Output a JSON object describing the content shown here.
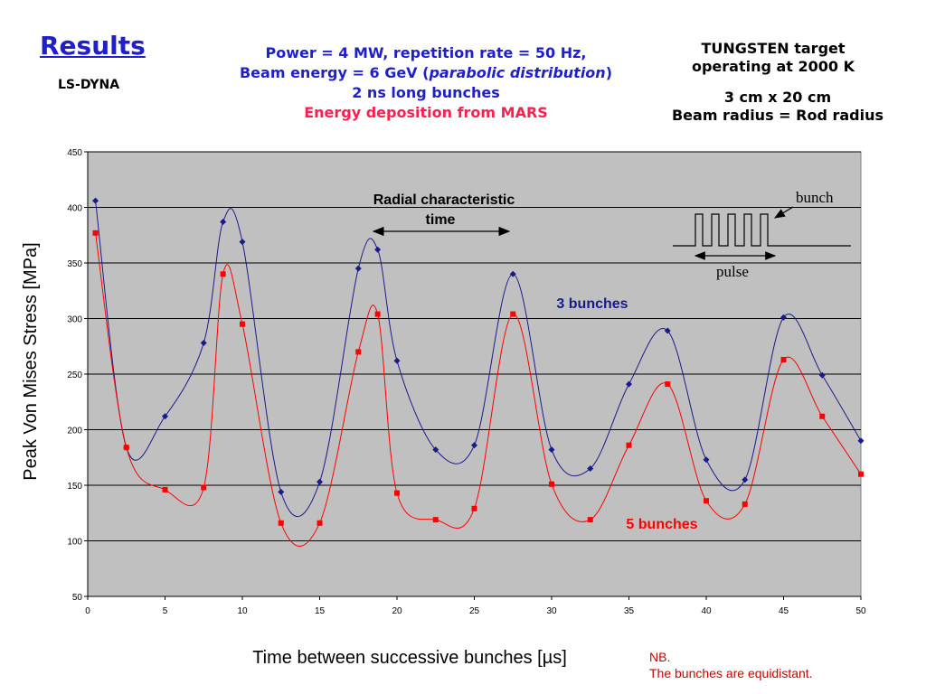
{
  "header": {
    "title": "Results",
    "subtitle": "LS-DYNA",
    "params_line1": "Power = 4 MW, repetition rate = 50 Hz,",
    "params_line2a": "Beam energy = 6 GeV (",
    "params_line2b": "parabolic distribution",
    "params_line2c": ")",
    "params_line3": "2 ns long bunches",
    "params_line4": "Energy deposition from MARS",
    "target_line1": "TUNGSTEN target",
    "target_line2": "operating at 2000 K",
    "target_line3": "3 cm x 20 cm",
    "target_line4": "Beam radius = Rod radius"
  },
  "note": {
    "line1": "NB.",
    "line2": "The bunches are equidistant."
  },
  "annotations": {
    "radial_line1": "Radial characteristic",
    "radial_line2": "time",
    "bunch": "bunch",
    "pulse": "pulse",
    "series3_label": "3 bunches",
    "series5_label": "5 bunches"
  },
  "colors": {
    "series3": "#1a1a8c",
    "series5": "#ff0000",
    "plot_bg": "#c0c0c0"
  },
  "chart_data": {
    "type": "line",
    "xlabel": "Time between successive bunches [µs]",
    "ylabel": "Peak Von Mises Stress [MPa]",
    "xlim": [
      0,
      50
    ],
    "ylim": [
      50,
      450
    ],
    "xticks": [
      0,
      5,
      10,
      15,
      20,
      25,
      30,
      35,
      40,
      45,
      50
    ],
    "yticks": [
      50,
      100,
      150,
      200,
      250,
      300,
      350,
      400,
      450
    ],
    "grid": "horizontal",
    "series": [
      {
        "name": "3 bunches",
        "x": [
          0.5,
          2.5,
          5,
          7.5,
          8.75,
          10,
          12.5,
          15,
          17.5,
          18.75,
          20,
          22.5,
          25,
          27.5,
          30,
          32.5,
          35,
          37.5,
          40,
          42.5,
          45,
          47.5,
          50
        ],
        "values": [
          406,
          184,
          212,
          278,
          387,
          369,
          144,
          153,
          345,
          362,
          262,
          182,
          186,
          340,
          182,
          165,
          241,
          289,
          173,
          155,
          301,
          249,
          190
        ]
      },
      {
        "name": "5 bunches",
        "x": [
          0.5,
          2.5,
          5,
          7.5,
          8.75,
          10,
          12.5,
          15,
          17.5,
          18.75,
          20,
          22.5,
          25,
          27.5,
          30,
          32.5,
          35,
          37.5,
          40,
          42.5,
          45,
          47.5,
          50
        ],
        "values": [
          377,
          184,
          146,
          148,
          340,
          295,
          116,
          116,
          270,
          304,
          143,
          119,
          129,
          304,
          151,
          119,
          186,
          241,
          136,
          133,
          263,
          212,
          160
        ]
      }
    ]
  }
}
